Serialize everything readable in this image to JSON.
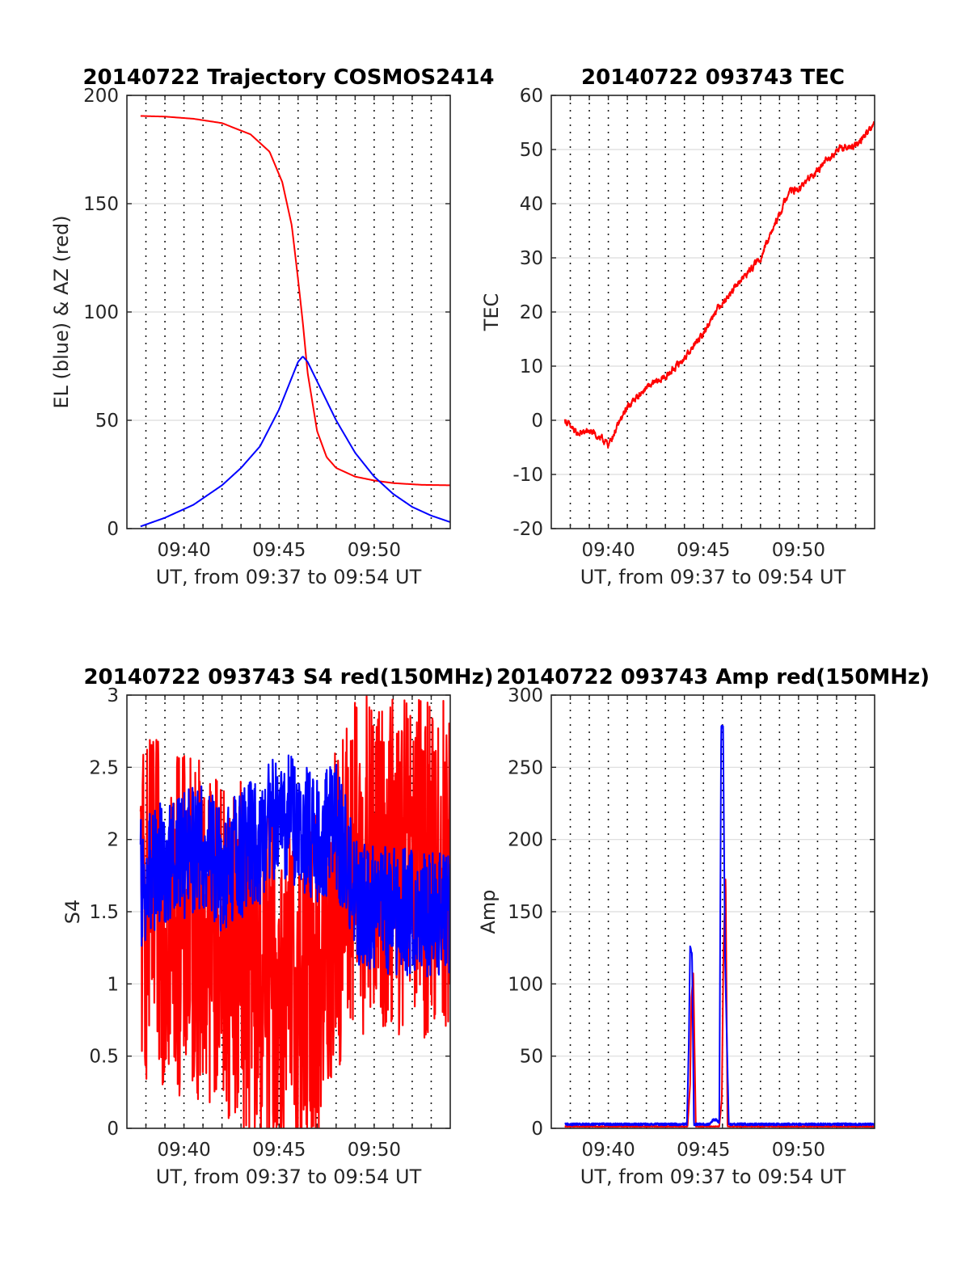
{
  "chart_data": [
    {
      "type": "line",
      "title": "20140722 Trajectory COSMOS2414",
      "xlabel": "UT, from 09:37 to 09:54 UT",
      "ylabel": "EL (blue) & AZ (red)",
      "xlim": [
        "09:37",
        "09:54"
      ],
      "ylim": [
        0,
        200
      ],
      "yticks": [
        "0",
        "50",
        "100",
        "150",
        "200"
      ],
      "xtick_labels": [
        "09:40",
        "09:45",
        "09:50"
      ],
      "grid": true,
      "series": [
        {
          "color": "#ff0000",
          "noise": 0,
          "x": [
            "09:37:43",
            "09:39:00",
            "09:40:30",
            "09:42:00",
            "09:43:30",
            "09:44:30",
            "09:45:10",
            "09:45:40",
            "09:46:00",
            "09:46:15",
            "09:46:30",
            "09:47:00",
            "09:47:30",
            "09:48:00",
            "09:49:00",
            "09:50:00",
            "09:51:00",
            "09:52:30",
            "09:54:00"
          ],
          "values": [
            190.5,
            190.2,
            189.2,
            187.2,
            182.0,
            174.0,
            160.0,
            140.0,
            115.0,
            95.0,
            72.0,
            45.0,
            33.0,
            28.0,
            24.0,
            22.2,
            21.0,
            20.2,
            20.0
          ]
        },
        {
          "color": "#0000ff",
          "noise": 0,
          "x": [
            "09:37:43",
            "09:39:00",
            "09:40:30",
            "09:42:00",
            "09:43:00",
            "09:44:00",
            "09:45:00",
            "09:45:30",
            "09:46:00",
            "09:46:15",
            "09:46:30",
            "09:47:00",
            "09:48:00",
            "09:49:00",
            "09:50:00",
            "09:51:00",
            "09:52:00",
            "09:53:00",
            "09:54:00"
          ],
          "values": [
            1.0,
            5.0,
            11.0,
            20.0,
            28.0,
            38.0,
            55.0,
            66.0,
            77.0,
            79.5,
            77.0,
            68.0,
            50.0,
            35.0,
            24.0,
            16.0,
            10.0,
            6.0,
            3.0
          ]
        }
      ]
    },
    {
      "type": "line",
      "title": "20140722 093743 TEC",
      "xlabel": "UT, from 09:37 to 09:54 UT",
      "ylabel": "TEC",
      "xlim": [
        "09:37",
        "09:54"
      ],
      "ylim": [
        -20,
        60
      ],
      "yticks": [
        "-20",
        "-10",
        "0",
        "10",
        "20",
        "30",
        "40",
        "50",
        "60"
      ],
      "xtick_labels": [
        "09:40",
        "09:45",
        "09:50"
      ],
      "grid": true,
      "series": [
        {
          "color": "#ff0000",
          "noise": 0.8,
          "x": [
            "09:37:43",
            "09:38:20",
            "09:39:00",
            "09:39:40",
            "09:40:00",
            "09:41:00",
            "09:42:00",
            "09:43:00",
            "09:44:00",
            "09:45:00",
            "09:45:40",
            "09:46:20",
            "09:47:00",
            "09:48:00",
            "09:49:00",
            "09:49:30",
            "09:50:00",
            "09:50:30",
            "09:51:00",
            "09:52:00",
            "09:53:00",
            "09:54:00"
          ],
          "values": [
            0,
            -2.5,
            -2.0,
            -3.5,
            -4.5,
            2.5,
            6.0,
            8.0,
            11.5,
            16.0,
            20.5,
            23.0,
            26.0,
            30.0,
            38.0,
            42.5,
            42.5,
            44.5,
            46.0,
            50.0,
            50.5,
            55.0
          ]
        }
      ]
    },
    {
      "type": "line",
      "title": "20140722 093743 S4 red(150MHz)",
      "xlabel": "UT, from 09:37 to 09:54 UT",
      "ylabel": "S4",
      "xlim": [
        "09:37",
        "09:54"
      ],
      "ylim": [
        0,
        3
      ],
      "yticks": [
        "0",
        "0.5",
        "1",
        "1.5",
        "2",
        "2.5",
        "3"
      ],
      "xtick_labels": [
        "09:40",
        "09:45",
        "09:50"
      ],
      "grid": true,
      "series": [
        {
          "color": "#ff0000",
          "noise": 1.2,
          "x": [
            "09:37:43",
            "09:39:00",
            "09:40:00",
            "09:41:00",
            "09:42:00",
            "09:43:00",
            "09:44:00",
            "09:45:00",
            "09:46:00",
            "09:47:00",
            "09:48:00",
            "09:49:00",
            "09:50:00",
            "09:51:00",
            "09:52:00",
            "09:53:00",
            "09:54:00"
          ],
          "values": [
            1.5,
            1.5,
            1.4,
            1.4,
            1.3,
            1.2,
            1.0,
            0.9,
            0.9,
            1.0,
            1.5,
            1.8,
            1.8,
            1.8,
            1.8,
            1.8,
            1.8
          ]
        },
        {
          "color": "#0000ff",
          "noise": 0.45,
          "x": [
            "09:37:43",
            "09:39:00",
            "09:40:00",
            "09:41:00",
            "09:42:00",
            "09:43:00",
            "09:44:00",
            "09:45:00",
            "09:46:00",
            "09:47:00",
            "09:48:00",
            "09:49:00",
            "09:50:00",
            "09:51:00",
            "09:52:00",
            "09:53:00",
            "09:54:00"
          ],
          "values": [
            1.7,
            1.85,
            1.9,
            1.95,
            1.8,
            1.9,
            2.0,
            2.2,
            2.1,
            2.0,
            2.1,
            1.6,
            1.5,
            1.5,
            1.5,
            1.5,
            1.5
          ]
        }
      ]
    },
    {
      "type": "line",
      "title": "20140722 093743 Amp red(150MHz)",
      "xlabel": "UT, from 09:37 to 09:54 UT",
      "ylabel": "Amp",
      "xlim": [
        "09:37",
        "09:54"
      ],
      "ylim": [
        0,
        300
      ],
      "yticks": [
        "0",
        "50",
        "100",
        "150",
        "200",
        "250",
        "300"
      ],
      "xtick_labels": [
        "09:40",
        "09:45",
        "09:50"
      ],
      "grid": true,
      "series": [
        {
          "color": "#ff0000",
          "noise": 0.5,
          "x": [
            "09:37:43",
            "09:44:10",
            "09:44:18",
            "09:44:22",
            "09:44:28",
            "09:44:36",
            "09:45:50",
            "09:45:58",
            "09:46:03",
            "09:46:10",
            "09:46:16",
            "09:54:00"
          ],
          "values": [
            1,
            1,
            30,
            90,
            108,
            1,
            1,
            20,
            120,
            175,
            1,
            1
          ]
        },
        {
          "color": "#0000ff",
          "noise": 1.6,
          "x": [
            "09:37:43",
            "09:44:08",
            "09:44:14",
            "09:44:18",
            "09:44:24",
            "09:44:30",
            "09:45:20",
            "09:45:30",
            "09:45:40",
            "09:45:50",
            "09:45:56",
            "09:46:02",
            "09:46:08",
            "09:46:14",
            "09:46:20",
            "09:54:00"
          ],
          "values": [
            2,
            2,
            60,
            125,
            120,
            2,
            2,
            5,
            5,
            3,
            278,
            277,
            120,
            60,
            2,
            2
          ]
        }
      ]
    }
  ]
}
